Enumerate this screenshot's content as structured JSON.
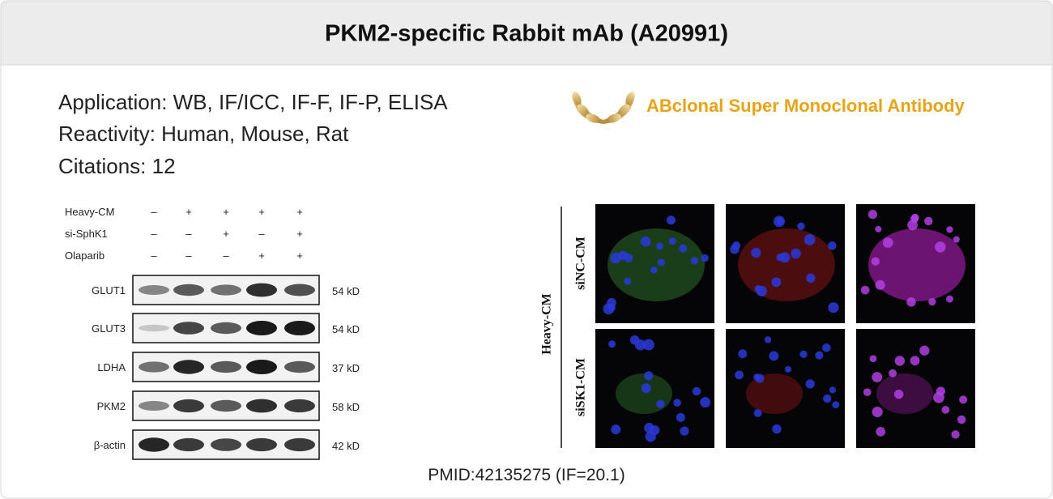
{
  "header": {
    "title": "PKM2-specific Rabbit mAb (A20991)"
  },
  "info": {
    "application": "Application: WB, IF/ICC, IF-F, IF-P, ELISA",
    "reactivity": "Reactivity: Human, Mouse, Rat",
    "citations": "Citations: 12"
  },
  "badge": {
    "text": "ABclonal Super Monoclonal Antibody"
  },
  "western_blot": {
    "conditions": [
      {
        "label": "Heavy-CM",
        "signs": [
          "–",
          "+",
          "+",
          "+",
          "+"
        ]
      },
      {
        "label": "si-SphK1",
        "signs": [
          "–",
          "–",
          "+",
          "–",
          "+"
        ]
      },
      {
        "label": "Olaparib",
        "signs": [
          "–",
          "–",
          "–",
          "+",
          "+"
        ]
      }
    ],
    "bands": [
      {
        "label": "GLUT1",
        "size": "54 kD"
      },
      {
        "label": "GLUT3",
        "size": "54 kD"
      },
      {
        "label": "LDHA",
        "size": "37 kD"
      },
      {
        "label": "PKM2",
        "size": "58 kD"
      },
      {
        "label": "β-actin",
        "size": "42 kD"
      }
    ]
  },
  "if_image": {
    "group": "Heavy-CM",
    "rows": [
      "siNC-CM",
      "siSK1-CM"
    ]
  },
  "footer": {
    "citation": "PMID:42135275 (IF=20.1)"
  }
}
